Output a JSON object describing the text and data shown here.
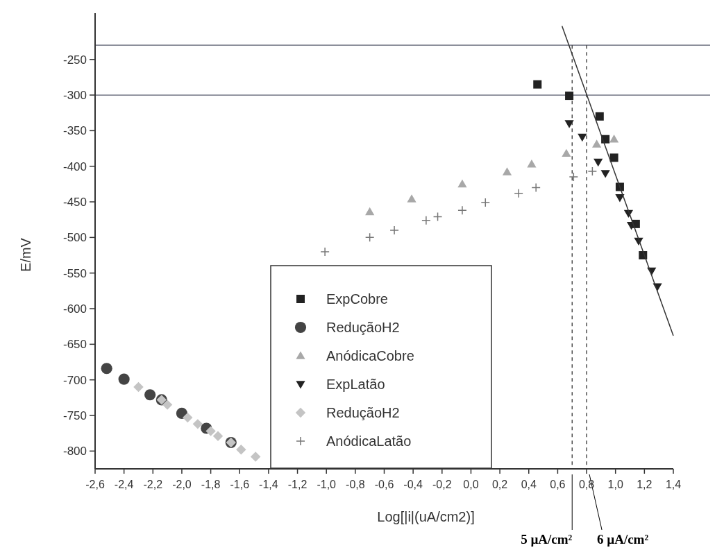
{
  "chart_data": {
    "type": "scatter",
    "xlabel": "Log[|i|(uA/cm2)]",
    "ylabel": "E/mV",
    "xlim": [
      -2.6,
      1.4
    ],
    "ylim": [
      -825,
      -185
    ],
    "xticks": [
      {
        "value": -2.6,
        "label": "-2,6"
      },
      {
        "value": -2.4,
        "label": "-2,4"
      },
      {
        "value": -2.2,
        "label": "-2,2"
      },
      {
        "value": -2.0,
        "label": "-2,0"
      },
      {
        "value": -1.8,
        "label": "-1,8"
      },
      {
        "value": -1.6,
        "label": "-1,6"
      },
      {
        "value": -1.4,
        "label": "-1,4"
      },
      {
        "value": -1.2,
        "label": "-1,2"
      },
      {
        "value": -1.0,
        "label": "-1,0"
      },
      {
        "value": -0.8,
        "label": "-0,8"
      },
      {
        "value": -0.6,
        "label": "-0,6"
      },
      {
        "value": -0.4,
        "label": "-0,4"
      },
      {
        "value": -0.2,
        "label": "-0,2"
      },
      {
        "value": 0,
        "label": "0,0"
      },
      {
        "value": 0.2,
        "label": "0,2"
      },
      {
        "value": 0.4,
        "label": "0,4"
      },
      {
        "value": 0.6,
        "label": "0,6"
      },
      {
        "value": 0.8,
        "label": "0,8"
      },
      {
        "value": 1.0,
        "label": "1,0"
      },
      {
        "value": 1.2,
        "label": "1,2"
      },
      {
        "value": 1.4,
        "label": "1,4"
      }
    ],
    "yticks": [
      -800,
      -750,
      -700,
      -650,
      -600,
      -550,
      -500,
      -450,
      -400,
      -350,
      -300,
      -250
    ],
    "legend": "bottom",
    "grid": false,
    "ref_lines": [
      {
        "axis": "y",
        "value": -230,
        "color": "#55586a",
        "line_style": "solid"
      },
      {
        "axis": "y",
        "value": -300,
        "color": "#55586a",
        "line_style": "solid"
      },
      {
        "axis": "x",
        "value": 0.7,
        "label": "5 µA/cm²",
        "color": "#333333",
        "line_style": "dashed"
      },
      {
        "axis": "x",
        "value": 0.8,
        "label": "6 µA/cm²",
        "color": "#333333",
        "line_style": "dashed"
      }
    ],
    "series": [
      {
        "name": "ExpCobre",
        "marker": "square",
        "color": "#222222",
        "x": [
          0.46,
          0.68,
          0.89,
          0.93,
          0.99,
          1.03,
          1.14,
          1.19
        ],
        "values": [
          -285,
          -301,
          -330,
          -362,
          -388,
          -429,
          -481,
          -525
        ]
      },
      {
        "name": "ReduçãoH2",
        "marker": "circle",
        "color": "#444444",
        "x": [
          -2.52,
          -2.4,
          -2.22,
          -2.14,
          -2.0,
          -1.83,
          -1.66
        ],
        "values": [
          -684,
          -699,
          -721,
          -728,
          -747,
          -768,
          -788
        ]
      },
      {
        "name": "AnódicaCobre",
        "marker": "triangle",
        "color": "#a8a8a8",
        "x": [
          -0.7,
          -0.41,
          -0.06,
          0.25,
          0.42,
          0.66,
          0.87,
          0.99
        ],
        "values": [
          -464,
          -446,
          -425,
          -408,
          -397,
          -382,
          -369,
          -362
        ]
      },
      {
        "name": "ExpLatão",
        "marker": "triangle-down",
        "color": "#222222",
        "x": [
          0.68,
          0.77,
          0.88,
          0.93,
          1.03,
          1.09,
          1.11,
          1.16,
          1.25,
          1.29
        ],
        "values": [
          -340,
          -359,
          -394,
          -410,
          -444,
          -466,
          -483,
          -505,
          -547,
          -569
        ]
      },
      {
        "name": "ReduçãoH2",
        "marker": "diamond",
        "color": "#c4c4c4",
        "x": [
          -2.3,
          -2.14,
          -2.1,
          -1.96,
          -1.89,
          -1.8,
          -1.75,
          -1.66,
          -1.59,
          -1.49
        ],
        "values": [
          -710,
          -728,
          -735,
          -753,
          -762,
          -772,
          -779,
          -788,
          -798,
          -808
        ]
      },
      {
        "name": "AnódicaLatão",
        "marker": "cross",
        "color": "#777777",
        "x": [
          -1.01,
          -0.7,
          -0.53,
          -0.31,
          -0.23,
          -0.06,
          0.1,
          0.33,
          0.45,
          0.71,
          0.84
        ],
        "values": [
          -520,
          -500,
          -490,
          -476,
          -471,
          -462,
          -451,
          -438,
          -430,
          -415,
          -407
        ]
      },
      {
        "type": "line",
        "marker": "none",
        "line_style": "solid",
        "color": "#333333",
        "x": [
          0.63,
          1.4
        ],
        "values": [
          -203,
          -638
        ]
      }
    ]
  }
}
